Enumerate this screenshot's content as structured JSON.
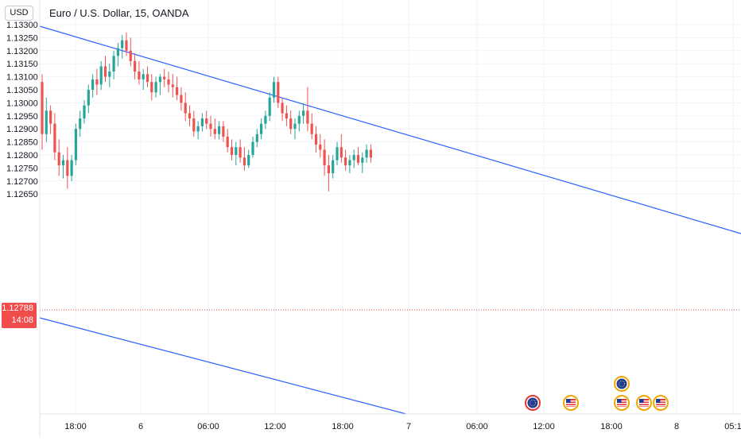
{
  "header": {
    "title": "Euro / U.S. Dollar, 15, OANDA",
    "currency": "USD"
  },
  "last_price": {
    "value": "1.12788",
    "countdown": "14:08",
    "price": 1.12788,
    "color": "#f04c4c"
  },
  "colors": {
    "up": "#26a69a",
    "down": "#ef5350",
    "trendline": "#2962ff",
    "grid": "#f0f3fa"
  },
  "chart_data": {
    "type": "candlestick",
    "title": "Euro / U.S. Dollar, 15, OANDA",
    "y_ticks": [
      "1.13300",
      "1.13250",
      "1.13200",
      "1.13150",
      "1.13100",
      "1.13050",
      "1.13000",
      "1.12950",
      "1.12900",
      "1.12850",
      "1.12800",
      "1.12750",
      "1.12700",
      "1.12650"
    ],
    "y_tick_values": [
      1.133,
      1.1325,
      1.132,
      1.1315,
      1.131,
      1.1305,
      1.13,
      1.1295,
      1.129,
      1.1285,
      1.128,
      1.1275,
      1.127,
      1.1265
    ],
    "x_ticks": [
      "18:00",
      "6",
      "06:00",
      "12:00",
      "18:00",
      "7",
      "06:00",
      "12:00",
      "18:00",
      "8",
      "05:1"
    ],
    "ylim": [
      1.12585,
      1.1335
    ],
    "candles": [
      [
        1.1308,
        1.1311,
        1.1282,
        1.1288
      ],
      [
        1.1288,
        1.1302,
        1.1285,
        1.1297
      ],
      [
        1.1297,
        1.1299,
        1.1288,
        1.1292
      ],
      [
        1.1292,
        1.1296,
        1.1278,
        1.1281
      ],
      [
        1.1281,
        1.1286,
        1.1272,
        1.1276
      ],
      [
        1.1276,
        1.128,
        1.1271,
        1.1278
      ],
      [
        1.1278,
        1.1283,
        1.1267,
        1.1272
      ],
      [
        1.1272,
        1.128,
        1.127,
        1.1278
      ],
      [
        1.1278,
        1.1292,
        1.1276,
        1.129
      ],
      [
        1.129,
        1.1297,
        1.1287,
        1.1294
      ],
      [
        1.1294,
        1.1301,
        1.1292,
        1.1299
      ],
      [
        1.1299,
        1.1307,
        1.1296,
        1.1305
      ],
      [
        1.1305,
        1.1311,
        1.1302,
        1.1309
      ],
      [
        1.1309,
        1.1313,
        1.1303,
        1.1307
      ],
      [
        1.1307,
        1.1316,
        1.1305,
        1.1314
      ],
      [
        1.1314,
        1.1318,
        1.1308,
        1.131
      ],
      [
        1.131,
        1.1315,
        1.1306,
        1.1312
      ],
      [
        1.1312,
        1.132,
        1.1309,
        1.1318
      ],
      [
        1.1318,
        1.1323,
        1.1314,
        1.1321
      ],
      [
        1.1321,
        1.1326,
        1.1317,
        1.1324
      ],
      [
        1.1324,
        1.1327,
        1.1318,
        1.132
      ],
      [
        1.132,
        1.1325,
        1.1314,
        1.1316
      ],
      [
        1.1316,
        1.1319,
        1.1309,
        1.1312
      ],
      [
        1.1312,
        1.1316,
        1.1307,
        1.1309
      ],
      [
        1.1309,
        1.1313,
        1.1305,
        1.1311
      ],
      [
        1.1311,
        1.1314,
        1.1306,
        1.1308
      ],
      [
        1.1308,
        1.1311,
        1.1301,
        1.1304
      ],
      [
        1.1304,
        1.131,
        1.1302,
        1.1308
      ],
      [
        1.1308,
        1.1311,
        1.1303,
        1.131
      ],
      [
        1.131,
        1.1313,
        1.1306,
        1.1309
      ],
      [
        1.1309,
        1.1312,
        1.1304,
        1.1307
      ],
      [
        1.1307,
        1.1311,
        1.1302,
        1.1306
      ],
      [
        1.1306,
        1.131,
        1.1301,
        1.1303
      ],
      [
        1.1303,
        1.1306,
        1.1297,
        1.13
      ],
      [
        1.13,
        1.1304,
        1.1293,
        1.1296
      ],
      [
        1.1296,
        1.1299,
        1.1291,
        1.1294
      ],
      [
        1.1294,
        1.1297,
        1.1287,
        1.1289
      ],
      [
        1.1289,
        1.1293,
        1.1286,
        1.1291
      ],
      [
        1.1291,
        1.1296,
        1.1289,
        1.1294
      ],
      [
        1.1294,
        1.1297,
        1.129,
        1.1292
      ],
      [
        1.1292,
        1.1295,
        1.1287,
        1.129
      ],
      [
        1.129,
        1.1294,
        1.1286,
        1.1288
      ],
      [
        1.1288,
        1.1293,
        1.1286,
        1.1291
      ],
      [
        1.1291,
        1.1293,
        1.1285,
        1.1287
      ],
      [
        1.1287,
        1.129,
        1.1281,
        1.1283
      ],
      [
        1.1283,
        1.1286,
        1.1278,
        1.128
      ],
      [
        1.128,
        1.1285,
        1.1276,
        1.1283
      ],
      [
        1.1283,
        1.1286,
        1.1277,
        1.1279
      ],
      [
        1.1279,
        1.1283,
        1.1274,
        1.1276
      ],
      [
        1.1276,
        1.1282,
        1.1275,
        1.128
      ],
      [
        1.128,
        1.1287,
        1.1279,
        1.1285
      ],
      [
        1.1285,
        1.129,
        1.1283,
        1.1288
      ],
      [
        1.1288,
        1.1294,
        1.1286,
        1.1292
      ],
      [
        1.1292,
        1.1297,
        1.129,
        1.1295
      ],
      [
        1.1295,
        1.1304,
        1.1293,
        1.1302
      ],
      [
        1.1302,
        1.131,
        1.13,
        1.1308
      ],
      [
        1.1308,
        1.131,
        1.1298,
        1.13
      ],
      [
        1.13,
        1.1302,
        1.1293,
        1.1296
      ],
      [
        1.1296,
        1.1299,
        1.1291,
        1.1294
      ],
      [
        1.1294,
        1.1297,
        1.1288,
        1.129
      ],
      [
        1.129,
        1.1294,
        1.1286,
        1.1292
      ],
      [
        1.1292,
        1.1297,
        1.1289,
        1.1295
      ],
      [
        1.1295,
        1.13,
        1.1292,
        1.1297
      ],
      [
        1.1297,
        1.1306,
        1.1289,
        1.1292
      ],
      [
        1.1292,
        1.1296,
        1.1286,
        1.1288
      ],
      [
        1.1288,
        1.1291,
        1.1281,
        1.1284
      ],
      [
        1.1284,
        1.1288,
        1.1279,
        1.1282
      ],
      [
        1.1282,
        1.1286,
        1.1272,
        1.1276
      ],
      [
        1.1276,
        1.128,
        1.1266,
        1.1273
      ],
      [
        1.1273,
        1.128,
        1.1271,
        1.1278
      ],
      [
        1.1278,
        1.1285,
        1.1276,
        1.1283
      ],
      [
        1.1283,
        1.1288,
        1.1277,
        1.1279
      ],
      [
        1.1279,
        1.1282,
        1.1274,
        1.1276
      ],
      [
        1.1276,
        1.128,
        1.1273,
        1.1278
      ],
      [
        1.1278,
        1.1282,
        1.1275,
        1.128
      ],
      [
        1.128,
        1.1283,
        1.1276,
        1.1277
      ],
      [
        1.1277,
        1.1281,
        1.1273,
        1.1279
      ],
      [
        1.1279,
        1.1284,
        1.1277,
        1.1282
      ],
      [
        1.1282,
        1.1284,
        1.1277,
        1.1279
      ]
    ]
  }
}
